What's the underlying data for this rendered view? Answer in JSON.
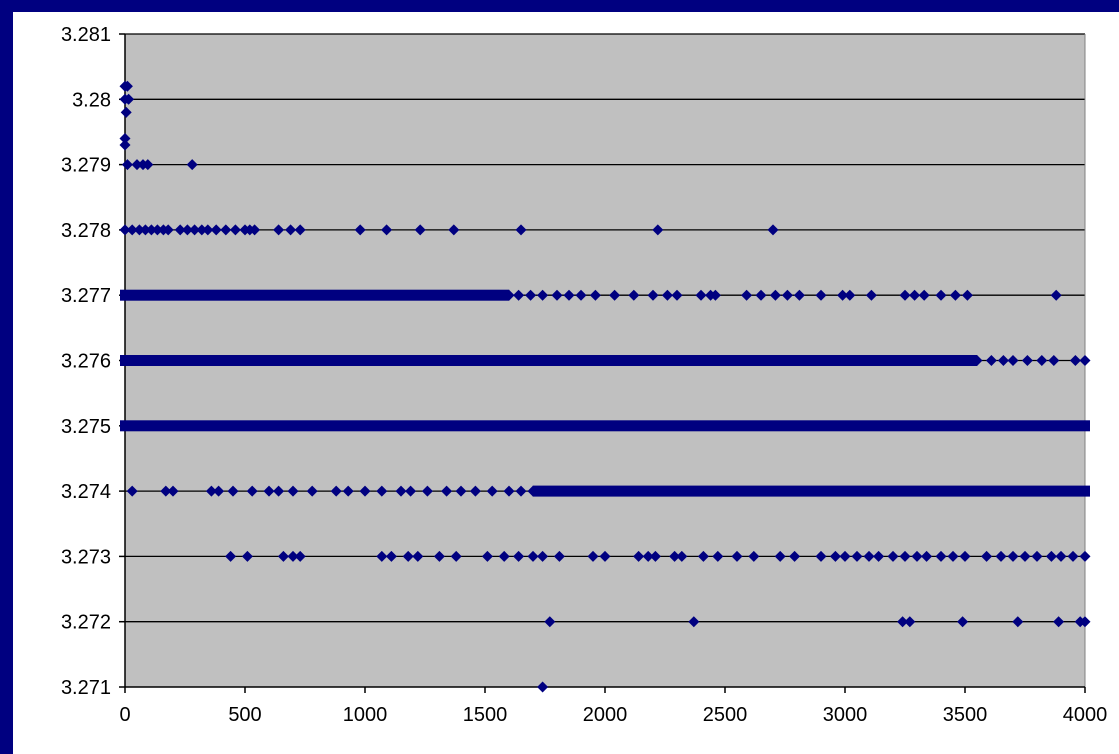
{
  "chart_data": {
    "type": "scatter",
    "title": "",
    "xlabel": "",
    "ylabel": "",
    "xlim": [
      0,
      4000
    ],
    "ylim": [
      3.271,
      3.281
    ],
    "x_ticks": [
      0,
      500,
      1000,
      1500,
      2000,
      2500,
      3000,
      3500,
      4000
    ],
    "y_ticks": [
      3.281,
      3.28,
      3.279,
      3.278,
      3.277,
      3.276,
      3.275,
      3.274,
      3.273,
      3.272,
      3.271
    ],
    "x_tick_labels": [
      "0",
      "500",
      "1000",
      "1500",
      "2000",
      "2500",
      "3000",
      "3500",
      "4000"
    ],
    "y_tick_labels": [
      "3.281",
      "3.28",
      "3.279",
      "3.278",
      "3.277",
      "3.276",
      "3.275",
      "3.274",
      "3.273",
      "3.272",
      "3.271"
    ],
    "grid": "horizontal",
    "legend": "none",
    "colors": {
      "marker": "#000080",
      "plot_background": "#c0c0c0",
      "gridline": "#000000",
      "frame_border": "#000080"
    },
    "series": [
      {
        "marker": "diamond",
        "points": [
          [
            0,
            3.2802
          ],
          [
            0,
            3.28
          ],
          [
            5,
            3.2798
          ],
          [
            10,
            3.2802
          ],
          [
            15,
            3.28
          ],
          [
            0,
            3.2794
          ],
          [
            0,
            3.2793
          ],
          [
            10,
            3.279
          ],
          [
            50,
            3.279
          ],
          [
            75,
            3.279
          ],
          [
            95,
            3.279
          ],
          [
            280,
            3.279
          ],
          [
            0,
            3.278
          ],
          [
            30,
            3.278
          ],
          [
            60,
            3.278
          ],
          [
            85,
            3.278
          ],
          [
            110,
            3.278
          ],
          [
            135,
            3.278
          ],
          [
            160,
            3.278
          ],
          [
            180,
            3.278
          ],
          [
            230,
            3.278
          ],
          [
            260,
            3.278
          ],
          [
            290,
            3.278
          ],
          [
            320,
            3.278
          ],
          [
            345,
            3.278
          ],
          [
            380,
            3.278
          ],
          [
            420,
            3.278
          ],
          [
            460,
            3.278
          ],
          [
            500,
            3.278
          ],
          [
            520,
            3.278
          ],
          [
            540,
            3.278
          ],
          [
            640,
            3.278
          ],
          [
            690,
            3.278
          ],
          [
            730,
            3.278
          ],
          [
            980,
            3.278
          ],
          [
            1090,
            3.278
          ],
          [
            1230,
            3.278
          ],
          [
            1370,
            3.278
          ],
          [
            1650,
            3.278
          ],
          [
            2220,
            3.278
          ],
          [
            2700,
            3.278
          ],
          [
            1600,
            3.277
          ],
          [
            1640,
            3.277
          ],
          [
            1690,
            3.277
          ],
          [
            1740,
            3.277
          ],
          [
            1800,
            3.277
          ],
          [
            1850,
            3.277
          ],
          [
            1900,
            3.277
          ],
          [
            1960,
            3.277
          ],
          [
            2040,
            3.277
          ],
          [
            2120,
            3.277
          ],
          [
            2200,
            3.277
          ],
          [
            2260,
            3.277
          ],
          [
            2300,
            3.277
          ],
          [
            2400,
            3.277
          ],
          [
            2440,
            3.277
          ],
          [
            2460,
            3.277
          ],
          [
            2590,
            3.277
          ],
          [
            2650,
            3.277
          ],
          [
            2710,
            3.277
          ],
          [
            2760,
            3.277
          ],
          [
            2810,
            3.277
          ],
          [
            2900,
            3.277
          ],
          [
            2990,
            3.277
          ],
          [
            3020,
            3.277
          ],
          [
            3110,
            3.277
          ],
          [
            3250,
            3.277
          ],
          [
            3290,
            3.277
          ],
          [
            3330,
            3.277
          ],
          [
            3400,
            3.277
          ],
          [
            3460,
            3.277
          ],
          [
            3510,
            3.277
          ],
          [
            3880,
            3.277
          ],
          [
            3550,
            3.276
          ],
          [
            3610,
            3.276
          ],
          [
            3660,
            3.276
          ],
          [
            3700,
            3.276
          ],
          [
            3760,
            3.276
          ],
          [
            3820,
            3.276
          ],
          [
            3870,
            3.276
          ],
          [
            3960,
            3.276
          ],
          [
            4000,
            3.276
          ],
          [
            30,
            3.274
          ],
          [
            170,
            3.274
          ],
          [
            200,
            3.274
          ],
          [
            360,
            3.274
          ],
          [
            390,
            3.274
          ],
          [
            450,
            3.274
          ],
          [
            530,
            3.274
          ],
          [
            600,
            3.274
          ],
          [
            640,
            3.274
          ],
          [
            700,
            3.274
          ],
          [
            780,
            3.274
          ],
          [
            880,
            3.274
          ],
          [
            930,
            3.274
          ],
          [
            1000,
            3.274
          ],
          [
            1070,
            3.274
          ],
          [
            1150,
            3.274
          ],
          [
            1190,
            3.274
          ],
          [
            1260,
            3.274
          ],
          [
            1340,
            3.274
          ],
          [
            1400,
            3.274
          ],
          [
            1460,
            3.274
          ],
          [
            1530,
            3.274
          ],
          [
            1600,
            3.274
          ],
          [
            1650,
            3.274
          ],
          [
            1700,
            3.274
          ],
          [
            440,
            3.273
          ],
          [
            510,
            3.273
          ],
          [
            660,
            3.273
          ],
          [
            700,
            3.273
          ],
          [
            730,
            3.273
          ],
          [
            1070,
            3.273
          ],
          [
            1110,
            3.273
          ],
          [
            1180,
            3.273
          ],
          [
            1220,
            3.273
          ],
          [
            1310,
            3.273
          ],
          [
            1380,
            3.273
          ],
          [
            1510,
            3.273
          ],
          [
            1580,
            3.273
          ],
          [
            1640,
            3.273
          ],
          [
            1700,
            3.273
          ],
          [
            1740,
            3.273
          ],
          [
            1810,
            3.273
          ],
          [
            1950,
            3.273
          ],
          [
            2000,
            3.273
          ],
          [
            2140,
            3.273
          ],
          [
            2180,
            3.273
          ],
          [
            2210,
            3.273
          ],
          [
            2290,
            3.273
          ],
          [
            2320,
            3.273
          ],
          [
            2410,
            3.273
          ],
          [
            2470,
            3.273
          ],
          [
            2550,
            3.273
          ],
          [
            2620,
            3.273
          ],
          [
            2730,
            3.273
          ],
          [
            2790,
            3.273
          ],
          [
            2900,
            3.273
          ],
          [
            2960,
            3.273
          ],
          [
            3000,
            3.273
          ],
          [
            3050,
            3.273
          ],
          [
            3100,
            3.273
          ],
          [
            3140,
            3.273
          ],
          [
            3200,
            3.273
          ],
          [
            3250,
            3.273
          ],
          [
            3300,
            3.273
          ],
          [
            3340,
            3.273
          ],
          [
            3400,
            3.273
          ],
          [
            3450,
            3.273
          ],
          [
            3500,
            3.273
          ],
          [
            3590,
            3.273
          ],
          [
            3650,
            3.273
          ],
          [
            3700,
            3.273
          ],
          [
            3750,
            3.273
          ],
          [
            3800,
            3.273
          ],
          [
            3860,
            3.273
          ],
          [
            3900,
            3.273
          ],
          [
            3950,
            3.273
          ],
          [
            4000,
            3.273
          ],
          [
            1770,
            3.272
          ],
          [
            2370,
            3.272
          ],
          [
            3240,
            3.272
          ],
          [
            3270,
            3.272
          ],
          [
            3490,
            3.272
          ],
          [
            3720,
            3.272
          ],
          [
            3890,
            3.272
          ],
          [
            3980,
            3.272
          ],
          [
            4000,
            3.272
          ],
          [
            1740,
            3.271
          ]
        ],
        "dense_runs": [
          {
            "y": 3.277,
            "x_from": 0,
            "x_to": 1580
          },
          {
            "y": 3.276,
            "x_from": 0,
            "x_to": 3530
          },
          {
            "y": 3.275,
            "x_from": 0,
            "x_to": 4000
          },
          {
            "y": 3.274,
            "x_from": 1720,
            "x_to": 4000
          }
        ]
      }
    ]
  }
}
